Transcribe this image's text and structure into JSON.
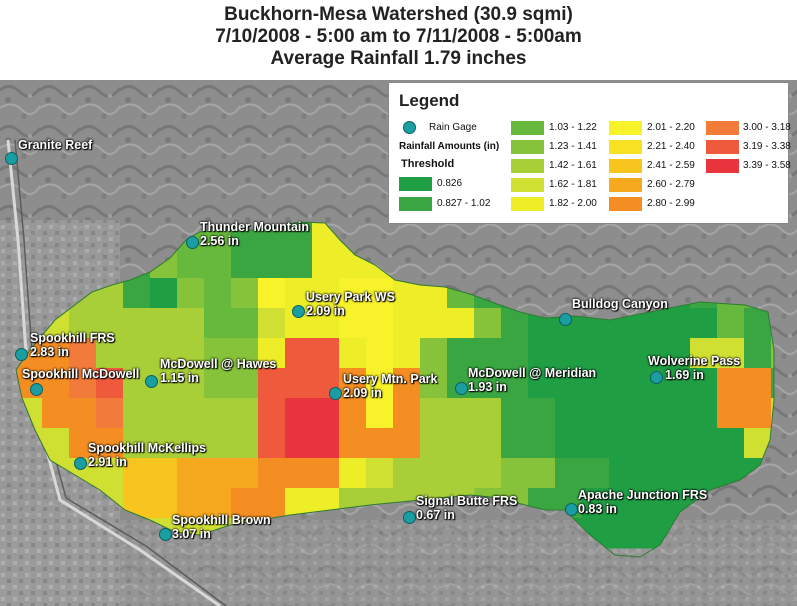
{
  "title": {
    "line1": "Buckhorn-Mesa Watershed (30.9 sqmi)",
    "line2": "7/10/2008 - 5:00 am to 7/11/2008 - 5:00am",
    "line3": "Average Rainfall 1.79 inches"
  },
  "legend": {
    "title": "Legend",
    "rain_gage_label": "Rain Gage",
    "rainfall_amounts_label": "Rainfall Amounts (in)",
    "threshold_label": "Threshold",
    "threshold": [
      {
        "label": "0.826",
        "color": "#1f9e44"
      },
      {
        "label": "0.827 - 1.02",
        "color": "#3aa641"
      }
    ],
    "ranges": [
      {
        "label": "1.03 - 1.22",
        "color": "#66b93c"
      },
      {
        "label": "1.23 - 1.41",
        "color": "#86c23a"
      },
      {
        "label": "1.42 - 1.61",
        "color": "#a9cf38"
      },
      {
        "label": "1.62 - 1.81",
        "color": "#d0e032"
      },
      {
        "label": "1.82 - 2.00",
        "color": "#eeee28"
      },
      {
        "label": "2.01 - 2.20",
        "color": "#f8f22a"
      },
      {
        "label": "2.21 - 2.40",
        "color": "#f8e022"
      },
      {
        "label": "2.41 - 2.59",
        "color": "#f7c51e"
      },
      {
        "label": "2.60 - 2.79",
        "color": "#f6a91f"
      },
      {
        "label": "2.80 - 2.99",
        "color": "#f48d22"
      },
      {
        "label": "3.00 - 3.18",
        "color": "#f27a3a"
      },
      {
        "label": "3.19 - 3.38",
        "color": "#ef5a3c"
      },
      {
        "label": "3.39 - 3.58",
        "color": "#e9343d"
      }
    ]
  },
  "gages": [
    {
      "name": "Granite Reef",
      "value": ""
    },
    {
      "name": "Thunder Mountain",
      "value": "2.56 in"
    },
    {
      "name": "Usery Park WS",
      "value": "2.09 in"
    },
    {
      "name": "Bulldog Canyon",
      "value": ""
    },
    {
      "name": "Spookhill FRS",
      "value": "2.83 in"
    },
    {
      "name": "Spookhill McDowell",
      "value": ""
    },
    {
      "name": "McDowell @ Hawes",
      "value": "1.15 in"
    },
    {
      "name": "Usery Mtn. Park",
      "value": "2.09 in"
    },
    {
      "name": "McDowell @ Meridian",
      "value": "1.93 in"
    },
    {
      "name": "Wolverine Pass",
      "value": "1.69 in"
    },
    {
      "name": "Spookhill McKellips",
      "value": "2.91 in"
    },
    {
      "name": "Signal Butte FRS",
      "value": "0.67 in"
    },
    {
      "name": "Apache Junction FRS",
      "value": "0.83 in"
    },
    {
      "name": "Spookhill Brown",
      "value": "3.07 in"
    }
  ],
  "colors": {
    "gage": "#1a9ea2",
    "terrain_dark": "#6f6f6f",
    "terrain_light": "#9a9a9a"
  }
}
